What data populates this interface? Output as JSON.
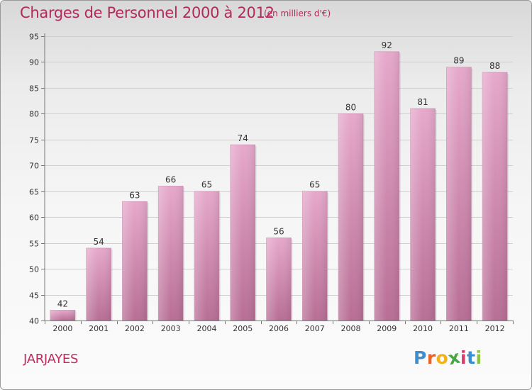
{
  "header": {
    "title": "Charges de Personnel 2000 à 2012",
    "subtitle": "(en milliers d'€)"
  },
  "footer": {
    "city": "JARJAYES",
    "logo": {
      "letters": [
        "P",
        "r",
        "o",
        "x",
        "i",
        "t",
        "i"
      ],
      "colors": [
        "#3b8ed0",
        "#e8632a",
        "#f3b21b",
        "#4aa544",
        "#d93a6c",
        "#3b8ed0",
        "#8cc63f"
      ]
    }
  },
  "colors": {
    "bar_light": "#e6a8cb",
    "bar_dark": "#b86e95",
    "axis": "#777777",
    "grid": "#d0d0d0",
    "text": "#333333",
    "accent": "#b22a5c"
  },
  "chart_data": {
    "type": "bar",
    "categories": [
      "2000",
      "2001",
      "2002",
      "2003",
      "2004",
      "2005",
      "2006",
      "2007",
      "2008",
      "2009",
      "2010",
      "2011",
      "2012"
    ],
    "values": [
      42,
      54,
      63,
      66,
      65,
      74,
      56,
      65,
      80,
      92,
      81,
      89,
      88
    ],
    "title": "Charges de Personnel 2000 à 2012",
    "subtitle": "(en milliers d'€)",
    "xlabel": "",
    "ylabel": "",
    "ylim": [
      40,
      95
    ],
    "yticks": [
      40,
      45,
      50,
      55,
      60,
      65,
      70,
      75,
      80,
      85,
      90,
      95
    ],
    "grid": true,
    "data_labels": true,
    "legend": "none"
  }
}
